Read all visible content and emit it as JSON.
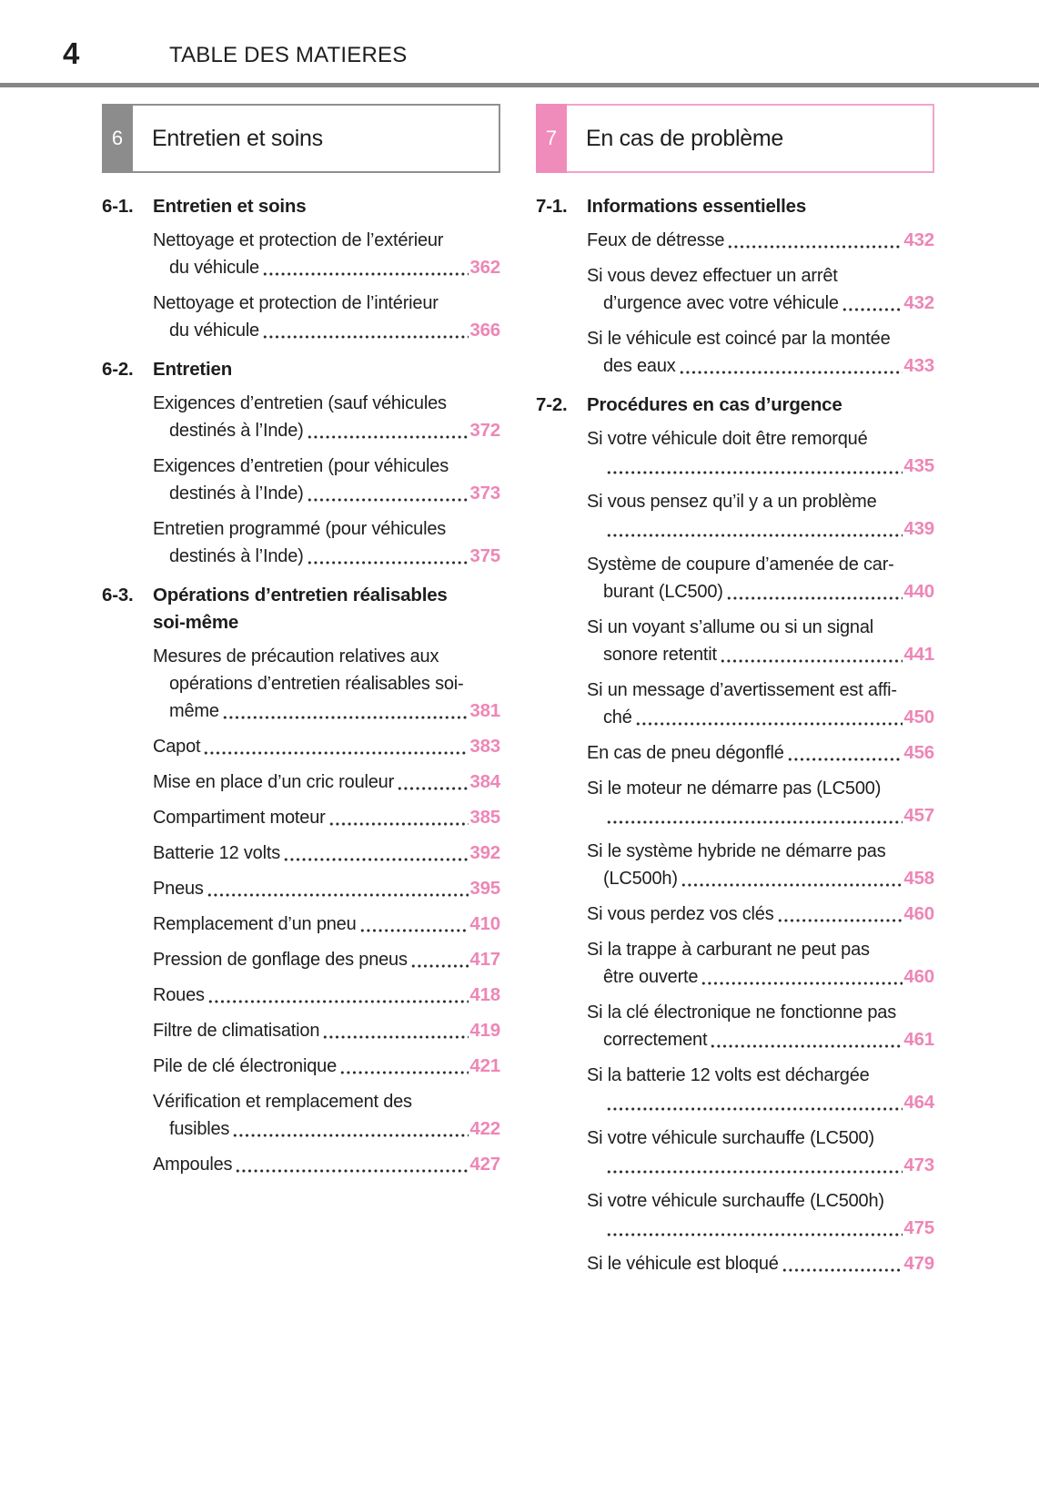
{
  "page": {
    "number": "4",
    "title": "TABLE DES MATIERES"
  },
  "colors": {
    "accent_pink": "#ee86b6",
    "tab_pink": "#f08cbb",
    "tab_pink_border": "#f2a3c9",
    "tab_gray": "#8c8c8c",
    "tab_gray_border": "#8f8f8f",
    "rule_gray": "#868686",
    "text": "#1e1e1e"
  },
  "columns": [
    {
      "chapter_number": "6",
      "chapter_title": "Entretien et soins",
      "style": "gray",
      "sections": [
        {
          "number": "6-1.",
          "title_lines": [
            "Entretien et soins"
          ],
          "entries": [
            {
              "lines": [
                "Nettoyage et protection de l’extérieur",
                "du véhicule"
              ],
              "page": "362"
            },
            {
              "lines": [
                "Nettoyage et protection de l’intérieur",
                "du véhicule"
              ],
              "page": "366"
            }
          ]
        },
        {
          "number": "6-2.",
          "title_lines": [
            "Entretien"
          ],
          "entries": [
            {
              "lines": [
                "Exigences d’entretien (sauf véhicules",
                "destinés à l’Inde)"
              ],
              "page": "372"
            },
            {
              "lines": [
                "Exigences d’entretien (pour véhicules",
                "destinés à l’Inde)"
              ],
              "page": "373"
            },
            {
              "lines": [
                "Entretien programmé (pour véhicules",
                "destinés à l’Inde)"
              ],
              "page": "375"
            }
          ]
        },
        {
          "number": "6-3.",
          "title_lines": [
            "Opérations d’entretien réalisables",
            "soi-même"
          ],
          "entries": [
            {
              "lines": [
                "Mesures de précaution relatives aux",
                "opérations d’entretien réalisables soi-",
                "même"
              ],
              "page": "381"
            },
            {
              "lines": [
                "Capot"
              ],
              "page": "383"
            },
            {
              "lines": [
                "Mise en place d’un cric rouleur"
              ],
              "page": "384"
            },
            {
              "lines": [
                "Compartiment moteur"
              ],
              "page": "385"
            },
            {
              "lines": [
                "Batterie 12 volts"
              ],
              "page": "392"
            },
            {
              "lines": [
                "Pneus"
              ],
              "page": "395"
            },
            {
              "lines": [
                "Remplacement d’un pneu"
              ],
              "page": "410"
            },
            {
              "lines": [
                "Pression de gonflage des pneus"
              ],
              "page": "417"
            },
            {
              "lines": [
                "Roues"
              ],
              "page": "418"
            },
            {
              "lines": [
                "Filtre de climatisation"
              ],
              "page": "419"
            },
            {
              "lines": [
                "Pile de clé électronique"
              ],
              "page": "421"
            },
            {
              "lines": [
                "Vérification et remplacement des",
                "fusibles"
              ],
              "page": "422"
            },
            {
              "lines": [
                "Ampoules"
              ],
              "page": "427"
            }
          ]
        }
      ]
    },
    {
      "chapter_number": "7",
      "chapter_title": "En cas de problème",
      "style": "pink",
      "sections": [
        {
          "number": "7-1.",
          "title_lines": [
            "Informations essentielles"
          ],
          "entries": [
            {
              "lines": [
                "Feux de détresse"
              ],
              "page": "432"
            },
            {
              "lines": [
                "Si vous devez effectuer un arrêt",
                "d’urgence avec votre véhicule"
              ],
              "page": "432"
            },
            {
              "lines": [
                "Si le véhicule est coincé par la montée",
                "des eaux"
              ],
              "page": "433"
            }
          ]
        },
        {
          "number": "7-2.",
          "title_lines": [
            "Procédures en cas d’urgence"
          ],
          "entries": [
            {
              "lines": [
                "Si votre véhicule doit être remorqué",
                ""
              ],
              "page": "435"
            },
            {
              "lines": [
                "Si vous pensez qu’il y a un problème",
                ""
              ],
              "page": "439"
            },
            {
              "lines": [
                "Système de coupure d’amenée de car-",
                "burant (LC500)"
              ],
              "page": "440"
            },
            {
              "lines": [
                "Si un voyant s’allume ou si un signal",
                "sonore retentit"
              ],
              "page": "441"
            },
            {
              "lines": [
                "Si un message d’avertissement est affi-",
                "ché"
              ],
              "page": "450"
            },
            {
              "lines": [
                "En cas de pneu dégonflé"
              ],
              "page": "456"
            },
            {
              "lines": [
                "Si le moteur ne démarre pas (LC500)",
                ""
              ],
              "page": "457"
            },
            {
              "lines": [
                "Si le système hybride ne démarre pas",
                "(LC500h)"
              ],
              "page": "458"
            },
            {
              "lines": [
                "Si vous perdez vos clés"
              ],
              "page": "460"
            },
            {
              "lines": [
                "Si la trappe à carburant ne peut pas",
                "être ouverte"
              ],
              "page": "460"
            },
            {
              "lines": [
                "Si la clé électronique ne fonctionne pas",
                "correctement"
              ],
              "page": "461"
            },
            {
              "lines": [
                "Si la batterie 12 volts est déchargée",
                ""
              ],
              "page": "464"
            },
            {
              "lines": [
                "Si votre véhicule surchauffe (LC500)",
                ""
              ],
              "page": "473"
            },
            {
              "lines": [
                "Si votre véhicule surchauffe (LC500h)",
                ""
              ],
              "page": "475"
            },
            {
              "lines": [
                "Si le véhicule est bloqué"
              ],
              "page": "479"
            }
          ]
        }
      ]
    }
  ]
}
